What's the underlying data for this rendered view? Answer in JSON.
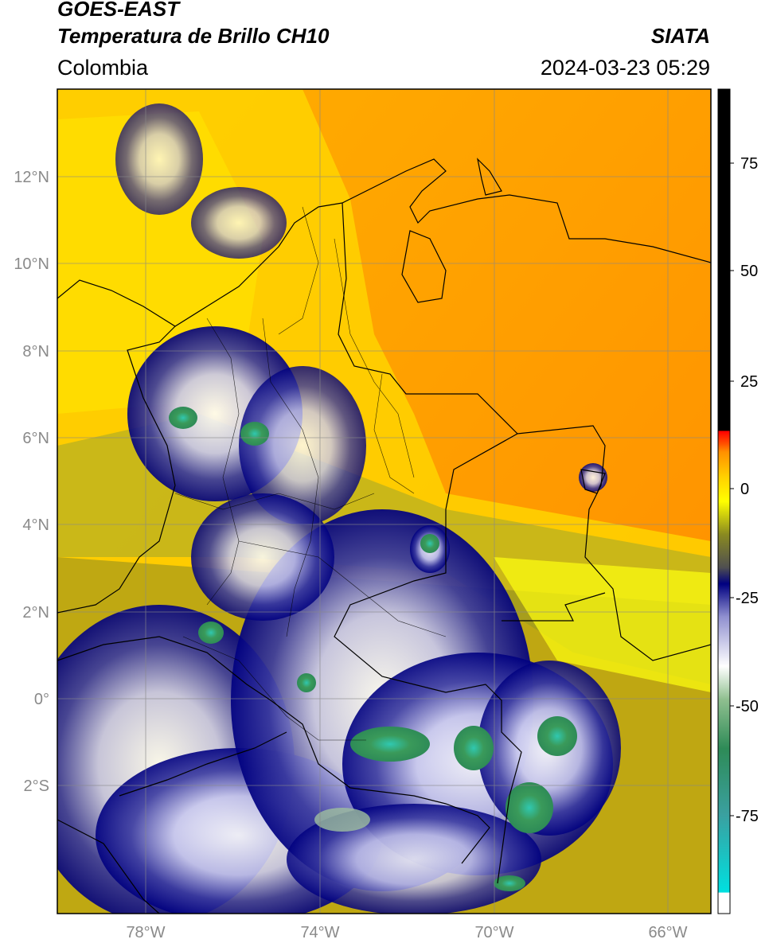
{
  "header": {
    "satellite": "GOES-EAST",
    "product": "Temperatura de Brillo CH10",
    "region": "Colombia",
    "agency": "SIATA",
    "datetime": "2024-03-23 05:29"
  },
  "map": {
    "lat_labels": [
      "12°N",
      "10°N",
      "8°N",
      "6°N",
      "4°N",
      "2°N",
      "0°",
      "2°S"
    ],
    "lon_labels": [
      "78°W",
      "74°W",
      "70°W",
      "66°W"
    ]
  },
  "colorbar": {
    "ticks": [
      "75",
      "50",
      "25",
      "0",
      "-25",
      "-50",
      "-75"
    ],
    "range": [
      -95,
      90
    ],
    "colors": [
      "#ffffff",
      "#00e0e0",
      "#2e8b57",
      "#ffffff",
      "#000080",
      "#8a8a20",
      "#ffff00",
      "#ff8c00",
      "#ff0000",
      "#000000"
    ]
  }
}
